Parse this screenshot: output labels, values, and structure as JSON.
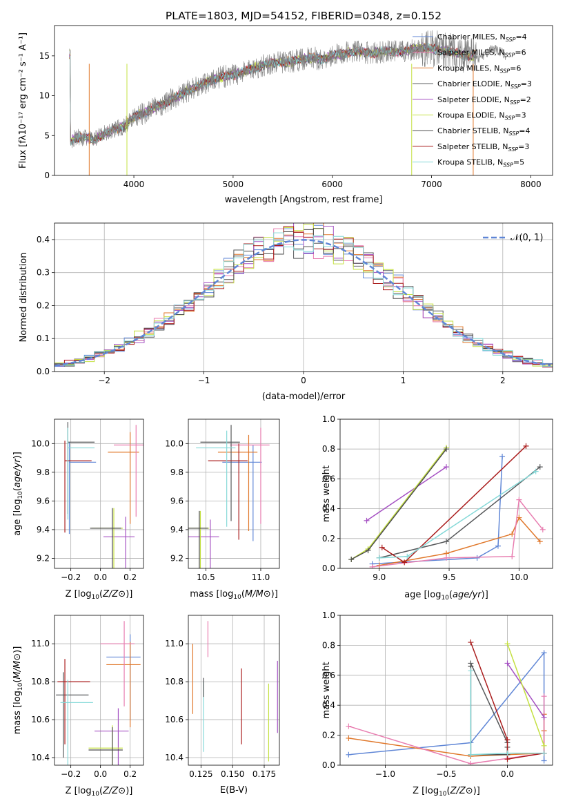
{
  "figure": {
    "title": "PLATE=1803, MJD=54152, FIBERID=0348, z=0.152"
  },
  "colors": [
    "#5f86d6",
    "#e0772a",
    "#e87db0",
    "#56585a",
    "#a44fc2",
    "#c4e041",
    "#4b4b4b",
    "#aa1d1d",
    "#85d9d8"
  ],
  "chart_data": [
    {
      "id": "spectrum",
      "type": "line",
      "xlabel": "wavelength [Angstrom, rest frame]",
      "ylabel": "Flux [fλ10⁻¹⁷ erg cm⁻² s⁻¹ A⁻¹]",
      "xlim": [
        3200,
        8220
      ],
      "ylim": [
        0,
        18.8
      ],
      "xticks": [
        4000,
        5000,
        6000,
        7000,
        8000
      ],
      "yticks": [
        0,
        5,
        10,
        15
      ],
      "grid": false,
      "legend_position": "top-right",
      "continuum_points": [
        [
          3360,
          4.4
        ],
        [
          3450,
          4.8
        ],
        [
          3600,
          4.5
        ],
        [
          3700,
          5.2
        ],
        [
          3800,
          5.8
        ],
        [
          3900,
          6.1
        ],
        [
          4000,
          7.3
        ],
        [
          4100,
          7.8
        ],
        [
          4200,
          8.5
        ],
        [
          4300,
          8.9
        ],
        [
          4400,
          9.7
        ],
        [
          4500,
          10.3
        ],
        [
          4600,
          10.9
        ],
        [
          4700,
          11.5
        ],
        [
          4800,
          12.0
        ],
        [
          4900,
          12.4
        ],
        [
          5000,
          12.6
        ],
        [
          5100,
          13.0
        ],
        [
          5200,
          13.4
        ],
        [
          5300,
          13.8
        ],
        [
          5400,
          14.1
        ],
        [
          5500,
          14.2
        ],
        [
          5600,
          14.3
        ],
        [
          5700,
          14.6
        ],
        [
          5800,
          14.8
        ],
        [
          5900,
          14.5
        ],
        [
          6000,
          15.1
        ],
        [
          6100,
          15.2
        ],
        [
          6200,
          15.6
        ],
        [
          6300,
          15.5
        ],
        [
          6400,
          15.3
        ],
        [
          6500,
          15.5
        ],
        [
          6600,
          15.6
        ],
        [
          6700,
          15.5
        ],
        [
          6800,
          15.8
        ],
        [
          6900,
          16.0
        ],
        [
          7000,
          15.9
        ],
        [
          7100,
          15.7
        ],
        [
          7200,
          15.5
        ],
        [
          7300,
          15.2
        ],
        [
          7400,
          15.0
        ],
        [
          7450,
          15.1
        ]
      ],
      "series": [
        {
          "name": "Chabrier MILES, Nₛₛₚ=4",
          "label_main": "Chabrier MILES, N",
          "label_sub": "SSP",
          "label_n": "=4",
          "color": "#5f86d6"
        },
        {
          "name": "Salpeter MILES, Nₛₛₚ=6",
          "label_main": "Salpeter MILES, N",
          "label_sub": "SSP",
          "label_n": "=6",
          "color": "#e87db0"
        },
        {
          "name": "Kroupa MILES, Nₛₛₚ=6",
          "label_main": "Kroupa MILES, N",
          "label_sub": "SSP",
          "label_n": "=6",
          "color": "#e0772a"
        },
        {
          "name": "Chabrier ELODIE, Nₛₛₚ=3",
          "label_main": "Chabrier ELODIE, N",
          "label_sub": "SSP",
          "label_n": "=3",
          "color": "#56585a"
        },
        {
          "name": "Salpeter ELODIE, Nₛₛₚ=2",
          "label_main": "Salpeter ELODIE, N",
          "label_sub": "SSP",
          "label_n": "=2",
          "color": "#a44fc2"
        },
        {
          "name": "Kroupa ELODIE, Nₛₛₚ=3",
          "label_main": "Kroupa ELODIE, N",
          "label_sub": "SSP",
          "label_n": "=3",
          "color": "#c4e041"
        },
        {
          "name": "Chabrier STELIB, Nₛₛₚ=4",
          "label_main": "Chabrier STELIB, N",
          "label_sub": "SSP",
          "label_n": "=4",
          "color": "#4b4b4b"
        },
        {
          "name": "Salpeter STELIB, Nₛₛₚ=3",
          "label_main": "Salpeter STELIB, N",
          "label_sub": "SSP",
          "label_n": "=3",
          "color": "#aa1d1d"
        },
        {
          "name": "Kroupa STELIB, Nₛₛₚ=5",
          "label_main": "Kroupa STELIB, N",
          "label_sub": "SSP",
          "label_n": "=5",
          "color": "#85d9d8"
        }
      ]
    },
    {
      "id": "residuals",
      "type": "line",
      "xlabel": "(data-model)/error",
      "ylabel": "Normed distribution",
      "xlim": [
        -2.5,
        2.5
      ],
      "ylim": [
        0,
        0.45
      ],
      "xticks": [
        -2,
        -1,
        0,
        1,
        2
      ],
      "yticks": [
        0.0,
        0.1,
        0.2,
        0.3,
        0.4
      ],
      "grid": true,
      "legend_position": "top-right",
      "gaussian_label": "𝒩(0, 1)",
      "gaussian_color": "#5f86d6",
      "bin_width": 0.1
    },
    {
      "id": "z-age",
      "type": "scatter",
      "xlabel": "Z [log10(Z/Z⊙)]",
      "ylabel": "age [log10(age/yr)]",
      "xlim": [
        -0.31,
        0.29
      ],
      "ylim": [
        9.13,
        10.17
      ],
      "xticks": [
        -0.2,
        0.0,
        0.2
      ],
      "yticks": [
        9.2,
        9.4,
        9.6,
        9.8,
        10.0
      ],
      "grid": true,
      "points": [
        {
          "x": -0.21,
          "y": 9.87,
          "xerr": [
            0.0,
            0.26
          ],
          "yerr": [
            0.45,
            0.05
          ],
          "color": "#5f86d6"
        },
        {
          "x": 0.2,
          "y": 9.94,
          "xerr": [
            0.0,
            0.26
          ],
          "yerr": [
            0.45,
            0.05
          ],
          "color": "#e0772a"
        },
        {
          "x": 0.24,
          "y": 9.99,
          "xerr": [
            0.0,
            0.26
          ],
          "yerr": [
            0.45,
            0.05
          ],
          "color": "#e87db0"
        },
        {
          "x": -0.22,
          "y": 10.01,
          "xerr": [
            0.0,
            0.26
          ],
          "yerr": [
            0.45,
            0.05
          ],
          "color": "#56585a"
        },
        {
          "x": 0.17,
          "y": 9.35,
          "xerr": [
            0.0,
            0.26
          ],
          "yerr": [
            0.45,
            0.05
          ],
          "color": "#a44fc2"
        },
        {
          "x": 0.09,
          "y": 9.41,
          "xerr": [
            0.0,
            0.26
          ],
          "yerr": [
            0.45,
            0.05
          ],
          "color": "#c4e041"
        },
        {
          "x": 0.08,
          "y": 9.41,
          "xerr": [
            0.0,
            0.26
          ],
          "yerr": [
            0.45,
            0.05
          ],
          "color": "#4b4b4b"
        },
        {
          "x": -0.24,
          "y": 9.88,
          "xerr": [
            0.0,
            0.26
          ],
          "yerr": [
            0.45,
            0.05
          ],
          "color": "#aa1d1d"
        },
        {
          "x": -0.22,
          "y": 9.97,
          "xerr": [
            0.0,
            0.26
          ],
          "yerr": [
            0.45,
            0.05
          ],
          "color": "#85d9d8"
        }
      ]
    },
    {
      "id": "mass-age",
      "type": "scatter",
      "xlabel": "mass [log10(M/M⊙)]",
      "ylabel": "",
      "xlim": [
        10.34,
        11.17
      ],
      "ylim": [
        9.13,
        10.17
      ],
      "xticks": [
        10.5,
        11.0
      ],
      "yticks": [
        9.2,
        9.4,
        9.6,
        9.8,
        10.0
      ],
      "grid": true,
      "points": [
        {
          "x": 10.93,
          "y": 9.87,
          "color": "#5f86d6"
        },
        {
          "x": 10.89,
          "y": 9.94,
          "color": "#e0772a"
        },
        {
          "x": 11.0,
          "y": 9.99,
          "color": "#e87db0"
        },
        {
          "x": 10.73,
          "y": 10.01,
          "color": "#56585a"
        },
        {
          "x": 10.54,
          "y": 9.35,
          "color": "#a44fc2"
        },
        {
          "x": 10.45,
          "y": 9.41,
          "color": "#c4e041"
        },
        {
          "x": 10.44,
          "y": 9.41,
          "color": "#4b4b4b"
        },
        {
          "x": 10.8,
          "y": 9.88,
          "color": "#aa1d1d"
        },
        {
          "x": 10.69,
          "y": 9.97,
          "color": "#85d9d8"
        }
      ]
    },
    {
      "id": "age-weight",
      "type": "line",
      "xlabel": "age [log10(age/yr)]",
      "ylabel": "mass weight",
      "xlim": [
        8.72,
        10.24
      ],
      "ylim": [
        0,
        1.0
      ],
      "xticks": [
        9.0,
        9.5,
        10.0
      ],
      "yticks": [
        0.0,
        0.2,
        0.4,
        0.6,
        0.8,
        1.0
      ],
      "grid": true,
      "series": [
        {
          "color": "#5f86d6",
          "points": [
            [
              8.95,
              0.03
            ],
            [
              9.7,
              0.07
            ],
            [
              9.85,
              0.15
            ],
            [
              9.88,
              0.75
            ]
          ]
        },
        {
          "color": "#e0772a",
          "points": [
            [
              9.0,
              0.02
            ],
            [
              9.48,
              0.1
            ],
            [
              9.95,
              0.23
            ],
            [
              10.0,
              0.34
            ],
            [
              10.15,
              0.18
            ]
          ]
        },
        {
          "color": "#e87db0",
          "points": [
            [
              8.95,
              0.01
            ],
            [
              9.48,
              0.07
            ],
            [
              9.95,
              0.08
            ],
            [
              10.0,
              0.46
            ],
            [
              10.17,
              0.26
            ]
          ]
        },
        {
          "color": "#56585a",
          "points": [
            [
              9.0,
              0.07
            ],
            [
              9.48,
              0.18
            ],
            [
              10.15,
              0.68
            ]
          ]
        },
        {
          "color": "#a44fc2",
          "points": [
            [
              8.91,
              0.32
            ],
            [
              9.48,
              0.68
            ]
          ]
        },
        {
          "color": "#c4e041",
          "points": [
            [
              8.8,
              0.06
            ],
            [
              8.92,
              0.13
            ],
            [
              9.48,
              0.81
            ]
          ]
        },
        {
          "color": "#4b4b4b",
          "points": [
            [
              8.8,
              0.06
            ],
            [
              8.92,
              0.12
            ],
            [
              9.48,
              0.8
            ]
          ]
        },
        {
          "color": "#aa1d1d",
          "points": [
            [
              9.02,
              0.14
            ],
            [
              9.18,
              0.04
            ],
            [
              10.05,
              0.82
            ]
          ]
        },
        {
          "color": "#85d9d8",
          "points": [
            [
              9.0,
              0.07
            ],
            [
              9.2,
              0.08
            ],
            [
              10.12,
              0.65
            ]
          ]
        }
      ]
    },
    {
      "id": "z-mass",
      "type": "scatter",
      "xlabel": "Z [log10(Z/Z⊙)]",
      "ylabel": "mass [log10(M/M⊙)]",
      "xlim": [
        -0.31,
        0.29
      ],
      "ylim": [
        10.36,
        11.15
      ],
      "xticks": [
        -0.2,
        0.0,
        0.2
      ],
      "yticks": [
        10.4,
        10.6,
        10.8,
        11.0
      ],
      "grid": true,
      "points": [
        {
          "x": 0.2,
          "y": 10.93,
          "color": "#5f86d6"
        },
        {
          "x": 0.2,
          "y": 10.89,
          "color": "#e0772a"
        },
        {
          "x": 0.16,
          "y": 11.0,
          "color": "#e87db0"
        },
        {
          "x": -0.25,
          "y": 10.73,
          "color": "#56585a"
        },
        {
          "x": 0.12,
          "y": 10.54,
          "color": "#a44fc2"
        },
        {
          "x": 0.08,
          "y": 10.45,
          "color": "#c4e041"
        },
        {
          "x": 0.08,
          "y": 10.44,
          "color": "#4b4b4b"
        },
        {
          "x": -0.24,
          "y": 10.8,
          "color": "#aa1d1d"
        },
        {
          "x": -0.22,
          "y": 10.69,
          "color": "#85d9d8"
        }
      ]
    },
    {
      "id": "ebv-mass",
      "type": "scatter",
      "xlabel": "E(B-V)",
      "ylabel": "",
      "xlim": [
        0.115,
        0.187
      ],
      "ylim": [
        10.36,
        11.15
      ],
      "xticks": [
        0.125,
        0.15,
        0.175
      ],
      "tick_labels": [
        "0.125",
        "0.150",
        "0.175"
      ],
      "yticks": [
        10.4,
        10.6,
        10.8,
        11.0
      ],
      "grid": true,
      "segments": [
        {
          "x": 0.1185,
          "y": [
            10.63,
            11.0
          ],
          "color": "#e0772a"
        },
        {
          "x": 0.127,
          "y": [
            10.43,
            10.8
          ],
          "color": "#85d9d8"
        },
        {
          "x": 0.127,
          "y": [
            10.72,
            10.82
          ],
          "color": "#56585a"
        },
        {
          "x": 0.1305,
          "y": [
            10.93,
            11.12
          ],
          "color": "#e87db0"
        },
        {
          "x": 0.157,
          "y": [
            10.47,
            10.87
          ],
          "color": "#aa1d1d"
        },
        {
          "x": 0.1785,
          "y": [
            10.38,
            10.79
          ],
          "color": "#c4e041"
        },
        {
          "x": 0.1855,
          "y": [
            10.53,
            10.91
          ],
          "color": "#a44fc2"
        }
      ]
    },
    {
      "id": "z-weight",
      "type": "line",
      "xlabel": "Z [log10(Z/Z⊙)]",
      "ylabel": "mass weight",
      "xlim": [
        -1.37,
        0.37
      ],
      "ylim": [
        0,
        1.0
      ],
      "xticks": [
        -1.0,
        -0.5,
        0.0
      ],
      "yticks": [
        0.0,
        0.2,
        0.4,
        0.6,
        0.8,
        1.0
      ],
      "grid": true,
      "series": [
        {
          "color": "#5f86d6",
          "points": [
            [
              -1.3,
              0.07
            ],
            [
              -0.3,
              0.15
            ],
            [
              0.3,
              0.75
            ],
            [
              0.3,
              0.03
            ]
          ]
        },
        {
          "color": "#e0772a",
          "points": [
            [
              -1.3,
              0.18
            ],
            [
              -0.3,
              0.06
            ],
            [
              0.3,
              0.08
            ],
            [
              0.3,
              0.34
            ],
            [
              0.3,
              0.23
            ]
          ]
        },
        {
          "color": "#e87db0",
          "points": [
            [
              -1.3,
              0.26
            ],
            [
              -0.3,
              0.01
            ],
            [
              0.3,
              0.08
            ],
            [
              0.3,
              0.46
            ]
          ]
        },
        {
          "color": "#56585a",
          "points": [
            [
              -0.3,
              0.68
            ],
            [
              0.0,
              0.15
            ]
          ]
        },
        {
          "color": "#a44fc2",
          "points": [
            [
              0.0,
              0.68
            ],
            [
              0.3,
              0.32
            ]
          ]
        },
        {
          "color": "#c4e041",
          "points": [
            [
              0.0,
              0.81
            ],
            [
              0.3,
              0.13
            ]
          ]
        },
        {
          "color": "#4b4b4b",
          "points": [
            [
              -0.3,
              0.66
            ],
            [
              -0.3,
              0.07
            ],
            [
              0.0,
              0.07
            ],
            [
              0.0,
              0.12
            ]
          ]
        },
        {
          "color": "#aa1d1d",
          "points": [
            [
              -0.3,
              0.82
            ],
            [
              0.0,
              0.17
            ],
            [
              0.0,
              0.04
            ],
            [
              0.3,
              0.08
            ]
          ]
        },
        {
          "color": "#85d9d8",
          "points": [
            [
              -0.3,
              0.63
            ],
            [
              -0.3,
              0.07
            ],
            [
              0.0,
              0.08
            ],
            [
              0.3,
              0.08
            ]
          ]
        }
      ]
    }
  ]
}
